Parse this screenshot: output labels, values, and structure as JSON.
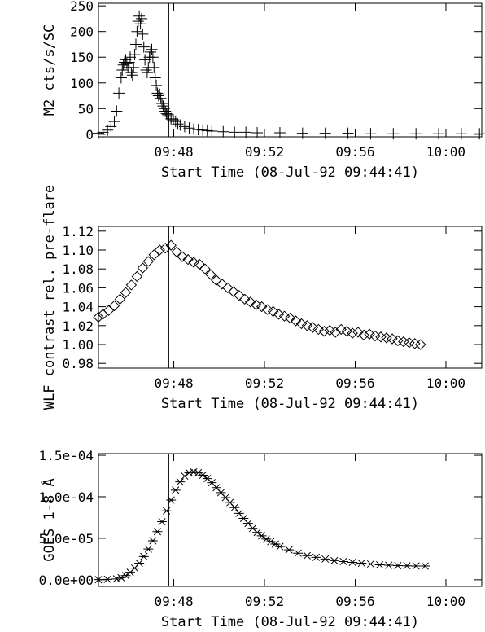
{
  "chart_data": [
    {
      "type": "scatter",
      "marker": "plus",
      "xlabel": "Start Time (08-Jul-92 09:44:41)",
      "ylabel": "M2 cts/s/SC",
      "xlim": [
        0,
        16.9
      ],
      "ylim": [
        -5,
        255
      ],
      "x_ticks": [
        {
          "value": 3.32,
          "label": "09:48"
        },
        {
          "value": 7.32,
          "label": "09:52"
        },
        {
          "value": 11.32,
          "label": "09:56"
        },
        {
          "value": 15.32,
          "label": "10:00"
        }
      ],
      "y_ticks": [
        0,
        50,
        100,
        150,
        200,
        250
      ],
      "vline_x": 3.1,
      "series": [
        {
          "x": [
            0.0,
            0.2,
            0.4,
            0.55,
            0.7,
            0.8,
            0.9,
            1.0,
            1.05,
            1.1,
            1.15,
            1.2,
            1.25,
            1.3,
            1.35,
            1.4,
            1.45,
            1.5,
            1.55,
            1.6,
            1.65,
            1.7,
            1.75,
            1.8,
            1.85,
            1.9,
            1.95,
            2.0,
            2.05,
            2.1,
            2.15,
            2.2,
            2.25,
            2.3,
            2.35,
            2.4,
            2.45,
            2.5,
            2.55,
            2.6,
            2.65,
            2.7,
            2.75,
            2.8,
            2.85,
            2.9,
            2.95,
            3.0,
            3.05,
            3.1,
            3.2,
            3.3,
            3.4,
            3.5,
            3.6,
            3.8,
            4.0,
            4.2,
            4.4,
            4.6,
            4.8,
            5.0,
            5.5,
            6.0,
            6.5,
            7.0,
            8.0,
            9.0,
            10.0,
            11.0,
            12.0,
            13.0,
            14.0,
            15.0,
            16.0,
            16.8
          ],
          "y": [
            2,
            4,
            8,
            15,
            25,
            45,
            80,
            110,
            125,
            135,
            140,
            145,
            138,
            130,
            140,
            150,
            120,
            115,
            130,
            155,
            175,
            200,
            220,
            230,
            215,
            225,
            195,
            170,
            145,
            125,
            120,
            130,
            150,
            160,
            165,
            150,
            130,
            110,
            95,
            80,
            75,
            78,
            70,
            60,
            55,
            50,
            45,
            40,
            38,
            35,
            30,
            28,
            25,
            20,
            18,
            15,
            12,
            10,
            9,
            8,
            7,
            6,
            5,
            4,
            4,
            3,
            3,
            2,
            2,
            2,
            1,
            1,
            1,
            1,
            1,
            1
          ]
        }
      ]
    },
    {
      "type": "scatter",
      "marker": "diamond",
      "xlabel": "Start Time (08-Jul-92 09:44:41)",
      "ylabel": "WLF contrast rel. pre-flare",
      "xlim": [
        0,
        16.9
      ],
      "ylim": [
        0.975,
        1.125
      ],
      "x_ticks": [
        {
          "value": 3.32,
          "label": "09:48"
        },
        {
          "value": 7.32,
          "label": "09:52"
        },
        {
          "value": 11.32,
          "label": "09:56"
        },
        {
          "value": 15.32,
          "label": "10:00"
        }
      ],
      "y_ticks": [
        0.98,
        1.0,
        1.02,
        1.04,
        1.06,
        1.08,
        1.1,
        1.12
      ],
      "y_tick_labels": [
        "0.98",
        "1.00",
        "1.02",
        "1.04",
        "1.06",
        "1.08",
        "1.10",
        "1.12"
      ],
      "vline_x": 3.1,
      "series": [
        {
          "x": [
            0.0,
            0.2,
            0.45,
            0.7,
            0.95,
            1.2,
            1.45,
            1.7,
            1.95,
            2.2,
            2.45,
            2.7,
            2.95,
            3.2,
            3.45,
            3.7,
            3.95,
            4.2,
            4.45,
            4.7,
            4.95,
            5.2,
            5.45,
            5.7,
            5.95,
            6.2,
            6.45,
            6.7,
            6.95,
            7.2,
            7.45,
            7.7,
            7.95,
            8.2,
            8.45,
            8.7,
            8.95,
            9.2,
            9.45,
            9.7,
            9.95,
            10.2,
            10.45,
            10.7,
            10.95,
            11.2,
            11.45,
            11.7,
            11.95,
            12.2,
            12.45,
            12.7,
            12.95,
            13.2,
            13.45,
            13.7,
            13.95,
            14.2
          ],
          "y": [
            1.029,
            1.032,
            1.036,
            1.041,
            1.048,
            1.055,
            1.063,
            1.072,
            1.081,
            1.088,
            1.095,
            1.1,
            1.102,
            1.105,
            1.098,
            1.093,
            1.09,
            1.087,
            1.085,
            1.08,
            1.074,
            1.068,
            1.064,
            1.06,
            1.056,
            1.052,
            1.048,
            1.045,
            1.042,
            1.04,
            1.037,
            1.035,
            1.032,
            1.03,
            1.028,
            1.025,
            1.022,
            1.02,
            1.018,
            1.016,
            1.014,
            1.015,
            1.013,
            1.016,
            1.014,
            1.012,
            1.013,
            1.01,
            1.011,
            1.009,
            1.008,
            1.007,
            1.006,
            1.004,
            1.003,
            1.002,
            1.001,
            1.0
          ]
        }
      ]
    },
    {
      "type": "scatter",
      "marker": "star",
      "xlabel": "Start Time (08-Jul-92 09:44:41)",
      "ylabel": "GOES 1-8 Å",
      "xlim": [
        0,
        16.9
      ],
      "ylim": [
        -8e-06,
        0.000152
      ],
      "x_ticks": [
        {
          "value": 3.32,
          "label": "09:48"
        },
        {
          "value": 7.32,
          "label": "09:52"
        },
        {
          "value": 11.32,
          "label": "09:56"
        },
        {
          "value": 15.32,
          "label": "10:00"
        }
      ],
      "y_ticks": [
        0,
        5e-05,
        0.0001,
        0.00015
      ],
      "y_tick_labels": [
        "0.0e+00",
        "5.0e-05",
        "1.0e-04",
        "1.5e-04"
      ],
      "vline_x": 3.1,
      "series": [
        {
          "x": [
            0.0,
            0.4,
            0.8,
            1.0,
            1.2,
            1.4,
            1.6,
            1.8,
            2.0,
            2.2,
            2.4,
            2.6,
            2.8,
            3.0,
            3.2,
            3.4,
            3.6,
            3.8,
            4.0,
            4.2,
            4.4,
            4.6,
            4.8,
            5.0,
            5.2,
            5.4,
            5.6,
            5.8,
            6.0,
            6.2,
            6.4,
            6.6,
            6.8,
            7.0,
            7.2,
            7.4,
            7.6,
            7.8,
            8.0,
            8.4,
            8.8,
            9.2,
            9.6,
            10.0,
            10.4,
            10.8,
            11.2,
            11.6,
            12.0,
            12.4,
            12.8,
            13.2,
            13.6,
            14.0,
            14.4
          ],
          "y": [
            2e-07,
            5e-07,
            1e-06,
            2.5e-06,
            5e-06,
            9e-06,
            1.4e-05,
            2e-05,
            2.8e-05,
            3.7e-05,
            4.7e-05,
            5.8e-05,
            7e-05,
            8.3e-05,
            9.6e-05,
            0.000108,
            0.000118,
            0.000125,
            0.000129,
            0.00013,
            0.000129,
            0.000126,
            0.000122,
            0.000117,
            0.000111,
            0.000105,
            9.9e-05,
            9.3e-05,
            8.7e-05,
            8e-05,
            7.4e-05,
            6.8e-05,
            6.2e-05,
            5.7e-05,
            5.3e-05,
            4.9e-05,
            4.6e-05,
            4.3e-05,
            4e-05,
            3.6e-05,
            3.2e-05,
            2.9e-05,
            2.7e-05,
            2.5e-05,
            2.3e-05,
            2.2e-05,
            2.1e-05,
            2e-05,
            1.9e-05,
            1.8e-05,
            1.75e-05,
            1.7e-05,
            1.68e-05,
            1.66e-05,
            1.65e-05
          ]
        }
      ]
    }
  ]
}
